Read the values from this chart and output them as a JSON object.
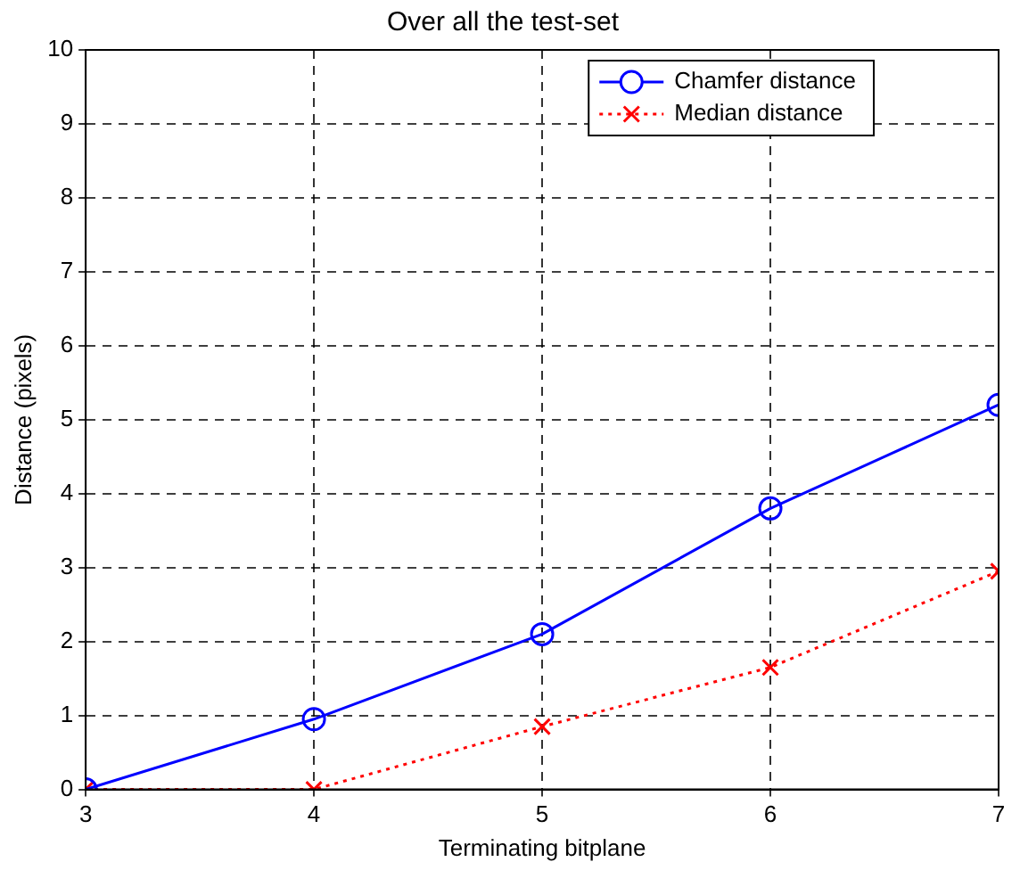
{
  "chart_data": {
    "type": "line",
    "title": "Over all the test-set",
    "xlabel": "Terminating bitplane",
    "ylabel": "Distance (pixels)",
    "x": [
      3,
      4,
      5,
      6,
      7
    ],
    "series": [
      {
        "name": "Chamfer distance",
        "color": "#0000ff",
        "values": [
          0,
          0.95,
          2.1,
          3.8,
          5.2
        ],
        "marker": "circle",
        "line_style": "solid"
      },
      {
        "name": "Median distance",
        "color": "#ff0000",
        "values": [
          0,
          0,
          0.85,
          1.65,
          2.95
        ],
        "marker": "cross",
        "line_style": "dotted"
      }
    ],
    "xlim": [
      3,
      7
    ],
    "xticks": [
      3,
      4,
      5,
      6,
      7
    ],
    "ylim": [
      0,
      10
    ],
    "yticks": [
      0,
      1,
      2,
      3,
      4,
      5,
      6,
      7,
      8,
      9,
      10
    ],
    "grid": true,
    "legend": "top right"
  }
}
